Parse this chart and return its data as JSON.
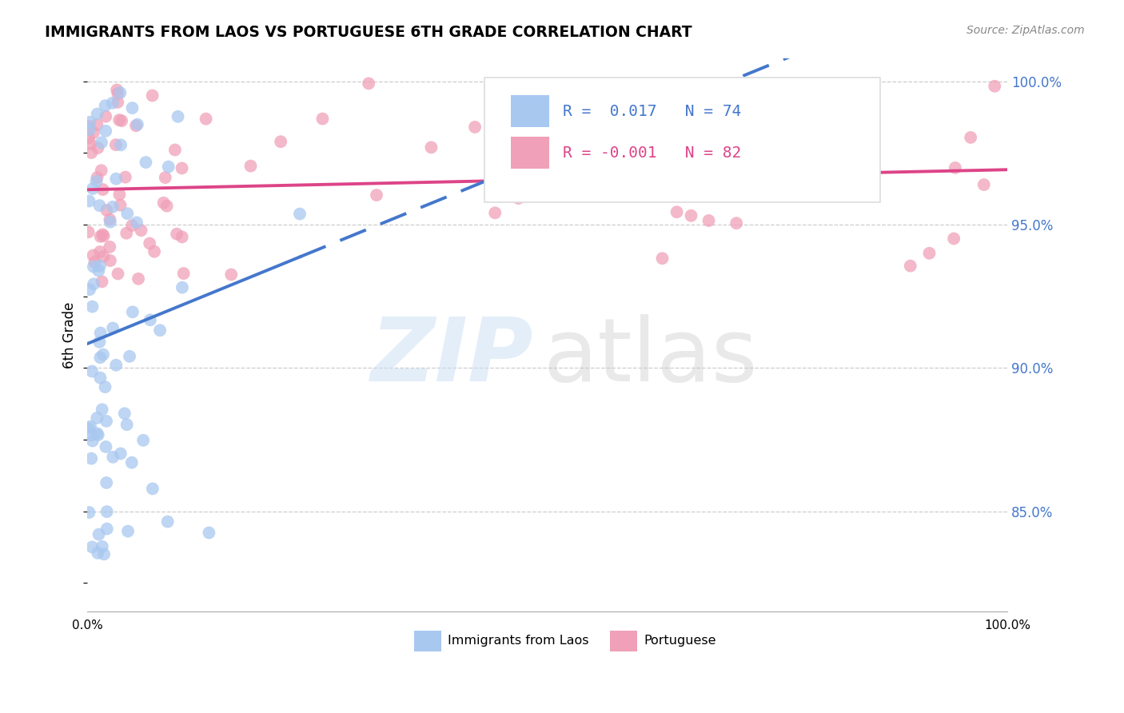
{
  "title": "IMMIGRANTS FROM LAOS VS PORTUGUESE 6TH GRADE CORRELATION CHART",
  "source": "Source: ZipAtlas.com",
  "ylabel": "6th Grade",
  "R1": 0.017,
  "N1": 74,
  "R2": -0.001,
  "N2": 82,
  "blue_color": "#a8c8f0",
  "pink_color": "#f0a0b8",
  "line_blue": "#4477cc",
  "line_pink": "#dd4488",
  "legend_label1": "Immigrants from Laos",
  "legend_label2": "Portuguese",
  "xmin": 0.0,
  "xmax": 1.0,
  "ymin": 0.815,
  "ymax": 1.008,
  "ytick_vals": [
    0.85,
    0.9,
    0.95,
    1.0
  ],
  "ytick_labels": [
    "85.0%",
    "90.0%",
    "95.0%",
    "100.0%"
  ],
  "grid_color": "#cccccc",
  "watermark_zip_color": "#cce0f5",
  "watermark_atlas_color": "#c8c8c8"
}
